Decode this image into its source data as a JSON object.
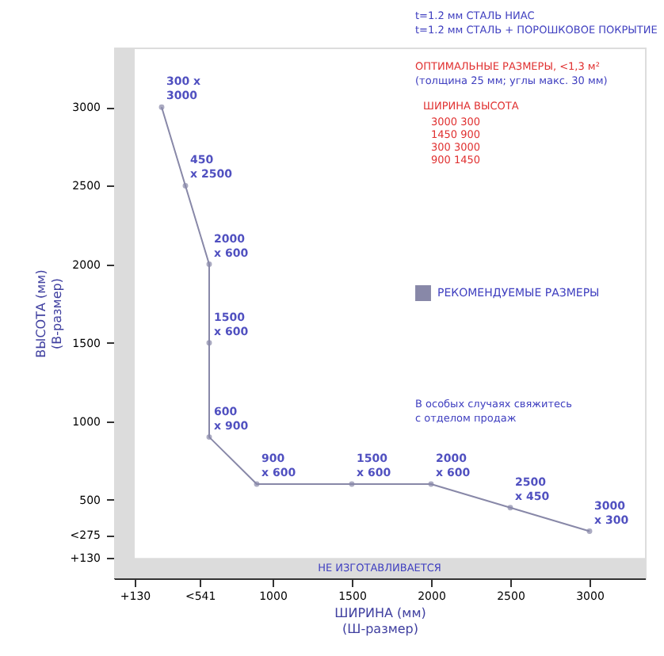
{
  "chart_data": {
    "type": "line",
    "xlabel": "ШИРИНА (мм)\n(Ш-размер)",
    "ylabel": "ВЫСОТА (мм)\n(В-размер)",
    "x": [
      300,
      450,
      600,
      600,
      600,
      900,
      1500,
      2000,
      2500,
      3000
    ],
    "series": [
      {
        "name": "РЕКОМЕНДУЕМЫЕ РАЗМЕРЫ",
        "color": "#8888a8",
        "values": [
          3000,
          2500,
          2000,
          1500,
          900,
          600,
          600,
          600,
          450,
          300
        ],
        "value_labels": [
          "300 x\n3000",
          "450\nx 2500",
          "2000\nx 600",
          "1500\nx 600",
          "600\nx 900",
          "900\nx 600",
          "1500\nx 600",
          "2000\nx 600",
          "2500\nx 450",
          "3000\nx 300"
        ]
      }
    ],
    "marker": "circle",
    "xlim": [
      0,
      3350
    ],
    "ylim": [
      0,
      3380
    ],
    "xticks": [
      {
        "value": 130,
        "label": "+130"
      },
      {
        "value": 541,
        "label": "<541"
      },
      1000,
      1500,
      2000,
      2500,
      3000
    ],
    "yticks": [
      {
        "value": 130,
        "label": "+130"
      },
      {
        "value": 275,
        "label": "<275"
      },
      500,
      1000,
      1500,
      2000,
      2500,
      3000
    ],
    "bands": [
      {
        "axis": "y",
        "from": 0,
        "to": 130,
        "label": "НЕ ИЗГОТАВЛИВАЕТСЯ",
        "color": "#dcdcdc"
      },
      {
        "axis": "x",
        "from": 0,
        "to": 130,
        "color": "#dcdcdc"
      }
    ],
    "legend": "right",
    "grid": false,
    "annotations": [
      "t=1.2 мм СТАЛЬ HИAC",
      "t=1.2 мм СТАЛЬ + ПОРОШКОВОЕ ПОКРЫТИЕ",
      "ОПТИМАЛЬНЫЕ РАЗМЕРЫ, <1,3 м²",
      "(толщина 25 мм; углы макс. 30 мм)",
      "ШИРИНА   ВЫСОТА",
      "3000        300",
      "1450        900",
      "300        3000",
      "900        1450",
      "В особых случаях свяжитесь",
      "с отделом продаж"
    ]
  }
}
